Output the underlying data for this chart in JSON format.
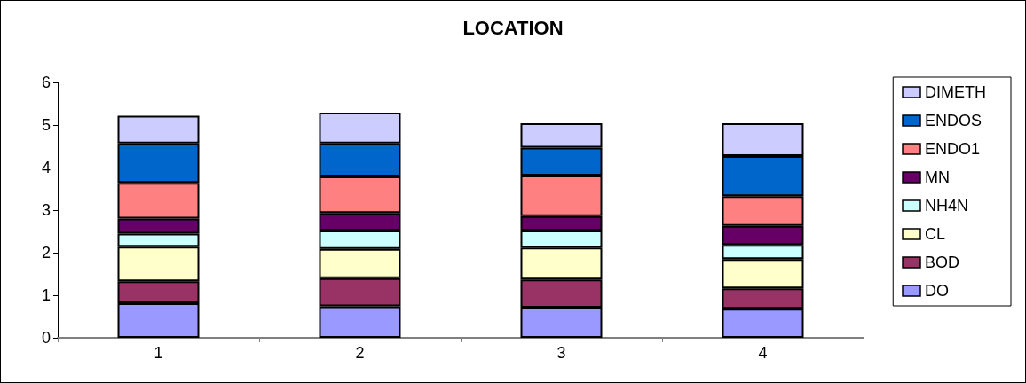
{
  "chart_data": {
    "type": "bar",
    "title": "LOCATION",
    "stacked": true,
    "legend": "right",
    "grid": false,
    "categories": [
      "1",
      "2",
      "3",
      "4"
    ],
    "ylim": [
      0,
      6
    ],
    "yticks": [
      0,
      1,
      2,
      3,
      4,
      5,
      6
    ],
    "series": [
      {
        "name": "DO",
        "color": "#9999ff",
        "values": [
          0.81,
          0.74,
          0.71,
          0.68
        ]
      },
      {
        "name": "BOD",
        "color": "#993366",
        "values": [
          0.52,
          0.66,
          0.66,
          0.48
        ]
      },
      {
        "name": "CL",
        "color": "#ffffcc",
        "values": [
          0.81,
          0.69,
          0.75,
          0.69
        ]
      },
      {
        "name": "NH4N",
        "color": "#ccffff",
        "values": [
          0.31,
          0.43,
          0.4,
          0.33
        ]
      },
      {
        "name": "MN",
        "color": "#660066",
        "values": [
          0.35,
          0.41,
          0.34,
          0.45
        ]
      },
      {
        "name": "ENDO1",
        "color": "#ff8080",
        "values": [
          0.84,
          0.86,
          0.95,
          0.7
        ]
      },
      {
        "name": "ENDOS",
        "color": "#0066cc",
        "values": [
          0.93,
          0.78,
          0.66,
          0.94
        ]
      },
      {
        "name": "DIMETH",
        "color": "#ccccff",
        "values": [
          0.65,
          0.72,
          0.57,
          0.77
        ]
      }
    ]
  }
}
